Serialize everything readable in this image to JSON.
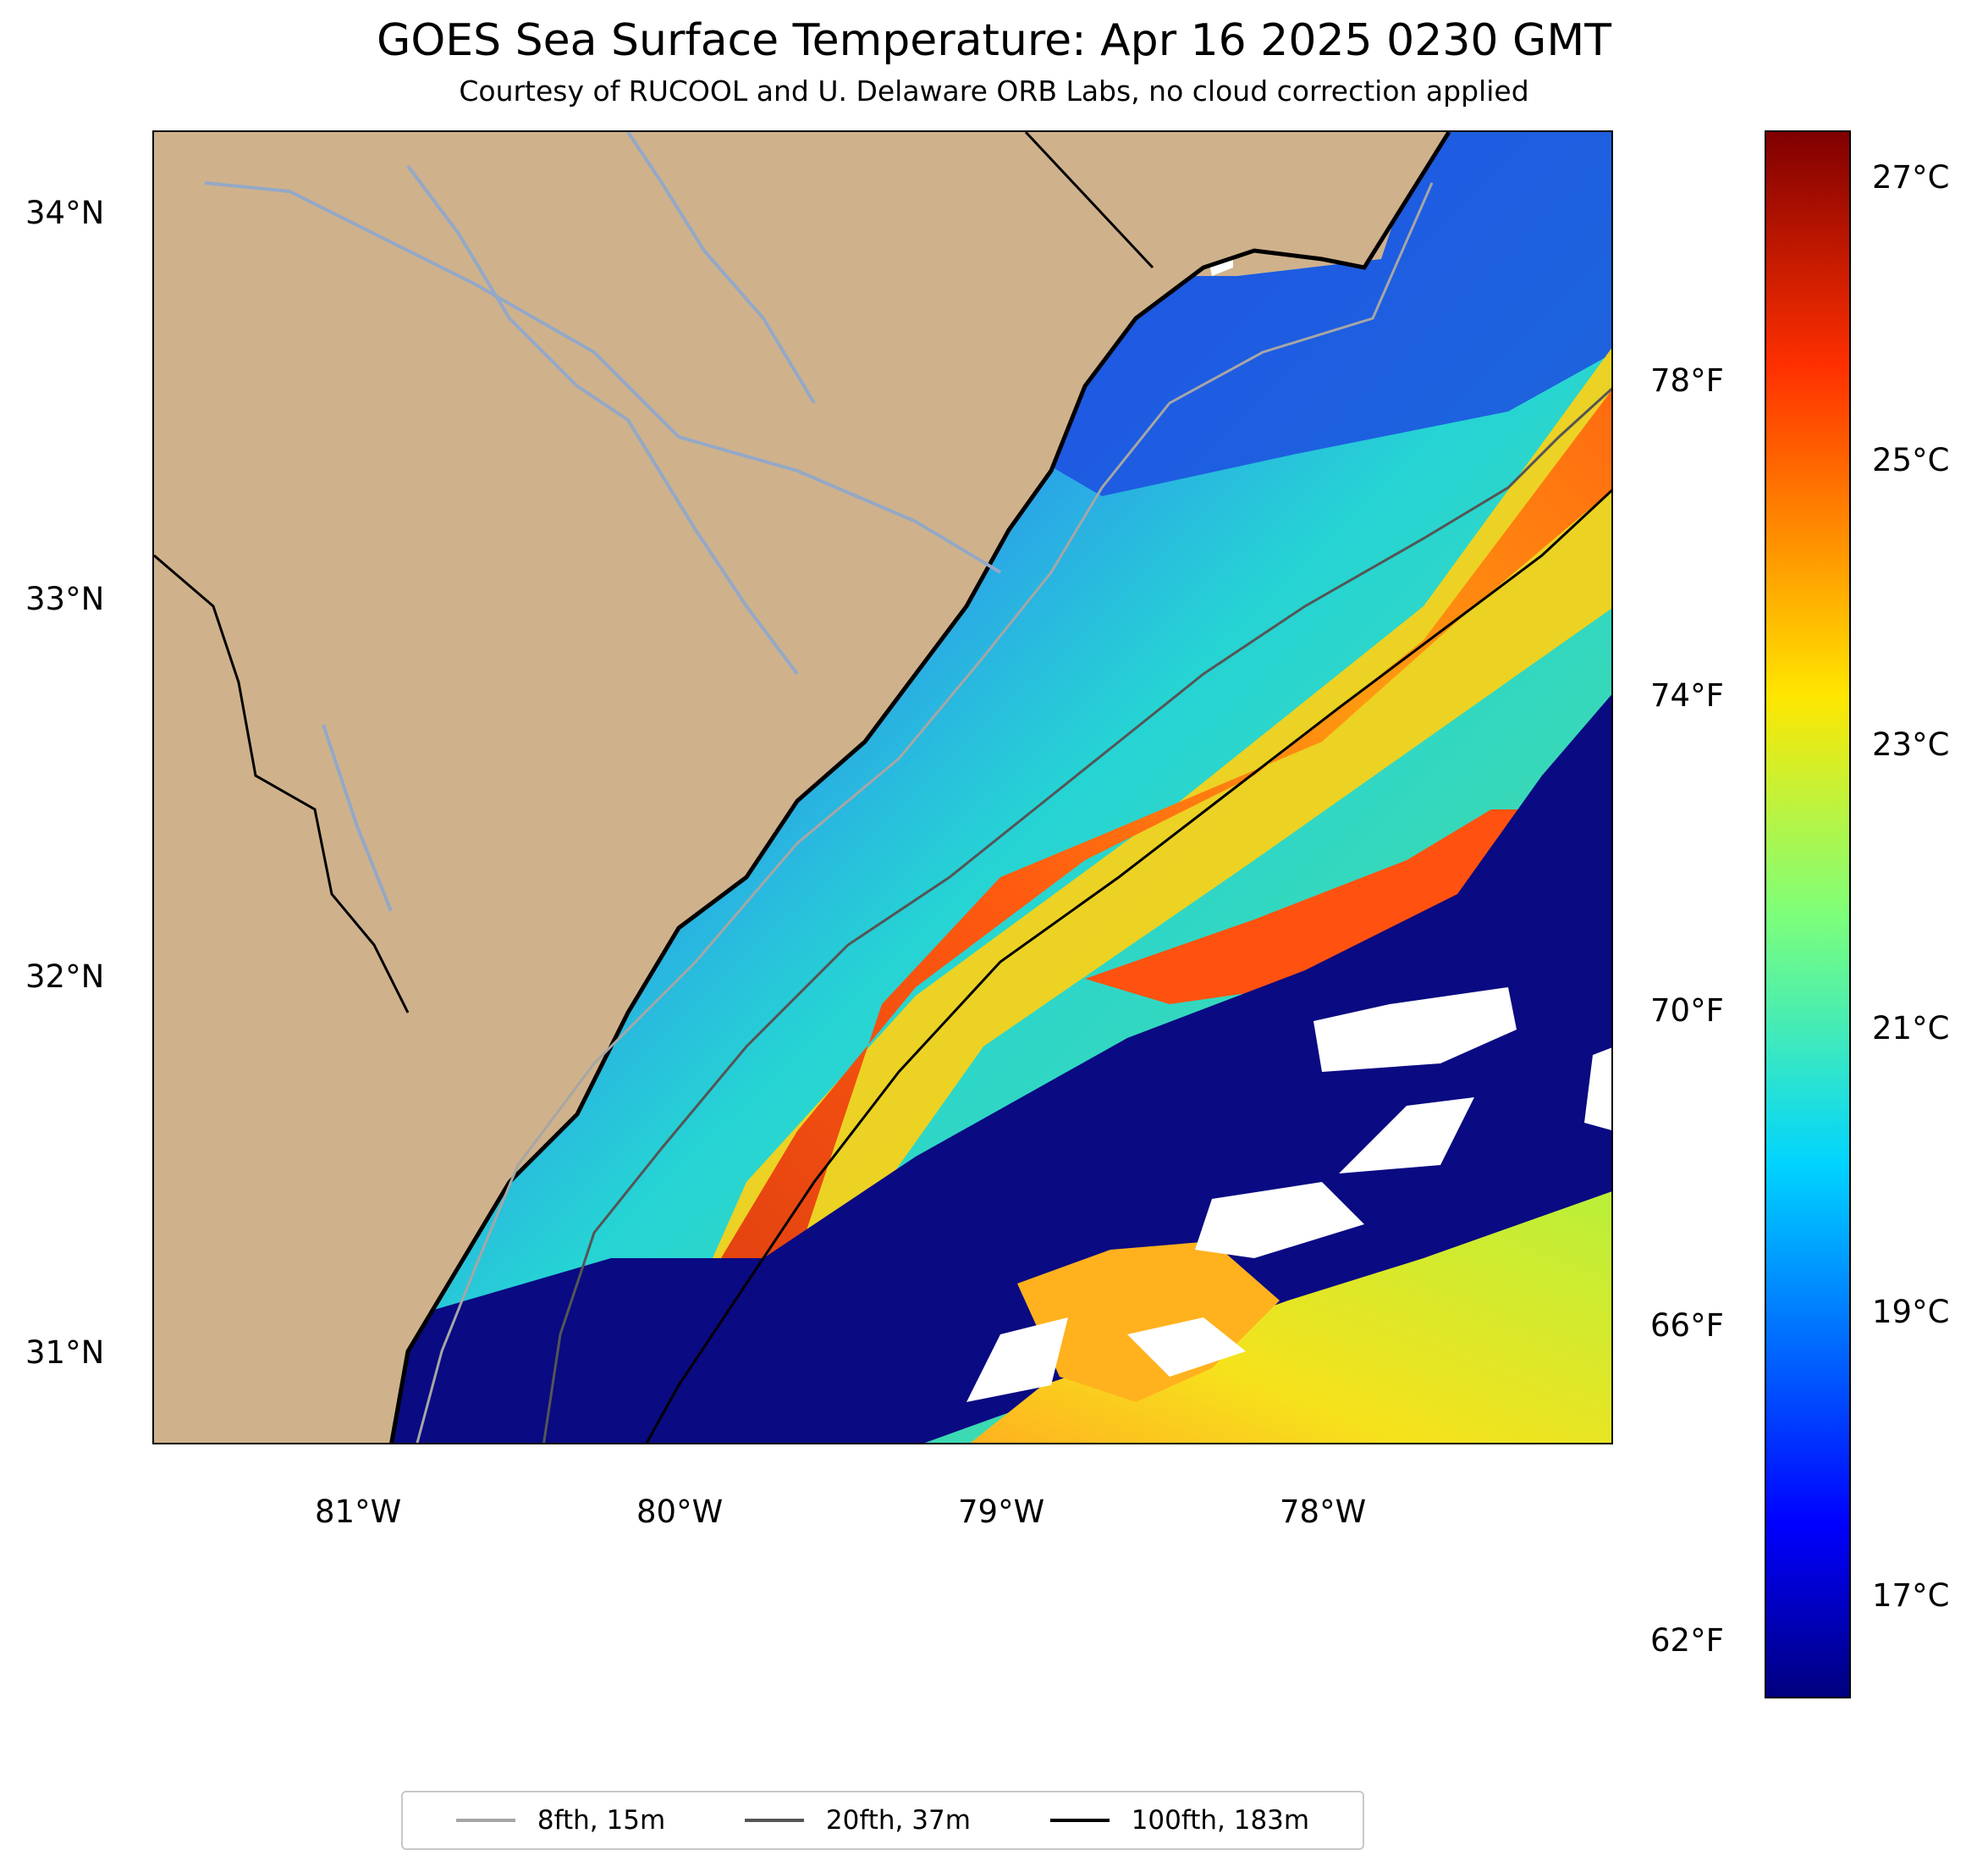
{
  "title": "GOES Sea Surface Temperature: Apr 16 2025 0230 GMT",
  "subtitle": "Courtesy of RUCOOL and U. Delaware ORB Labs, no cloud correction applied",
  "map": {
    "lat_labels": [
      "34°N",
      "33°N",
      "32°N",
      "31°N"
    ],
    "lon_labels": [
      "81°W",
      "80°W",
      "79°W",
      "78°W"
    ],
    "colors": {
      "land": "#cfb28b",
      "cloud_nodata": "#ffffff",
      "coast": "#000000",
      "rivers": "#94a8c7"
    },
    "features": [
      "coastline",
      "state-boundaries",
      "rivers",
      "bathymetry-contours",
      "sst-field",
      "cloud-masked-areas"
    ]
  },
  "colorbar": {
    "colormap": "jet",
    "celsius_labels": [
      "27°C",
      "25°C",
      "23°C",
      "21°C",
      "19°C",
      "17°C"
    ],
    "fahrenheit_labels": [
      "78°F",
      "74°F",
      "70°F",
      "66°F",
      "62°F"
    ],
    "range_celsius": [
      16.2,
      27.5
    ]
  },
  "legend": {
    "items": [
      {
        "label": "8fth, 15m",
        "color": "#a6a6a6"
      },
      {
        "label": "20fth, 37m",
        "color": "#555555"
      },
      {
        "label": "100fth, 183m",
        "color": "#000000"
      }
    ]
  }
}
